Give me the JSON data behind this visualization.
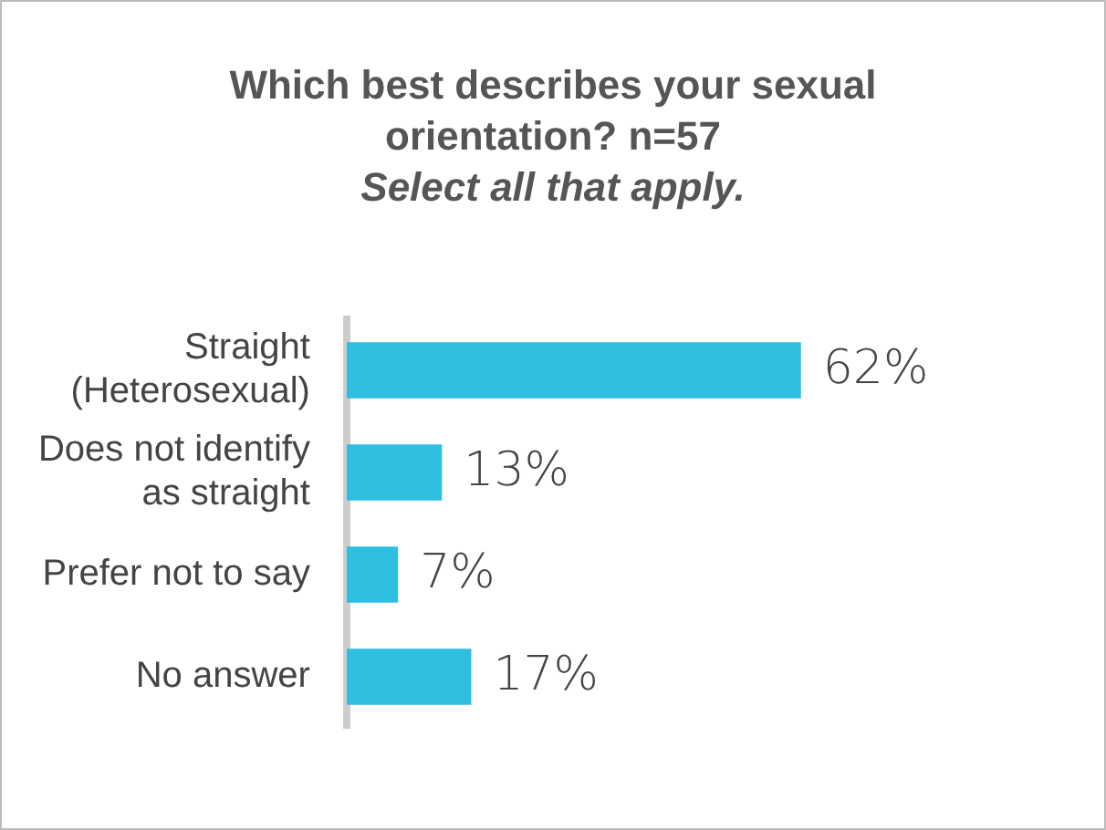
{
  "chart_data": {
    "type": "bar",
    "orientation": "horizontal",
    "title": "Which best describes your sexual orientation? n=57",
    "subtitle": "Select all that apply.",
    "categories": [
      "Straight (Heterosexual)",
      "Does not identify as straight",
      "Prefer not to say",
      "No answer"
    ],
    "values": [
      62,
      13,
      7,
      17
    ],
    "color": "#2fbde0",
    "value_labels": [
      "62%",
      "13%",
      "7%",
      "17%"
    ],
    "legend": false
  }
}
